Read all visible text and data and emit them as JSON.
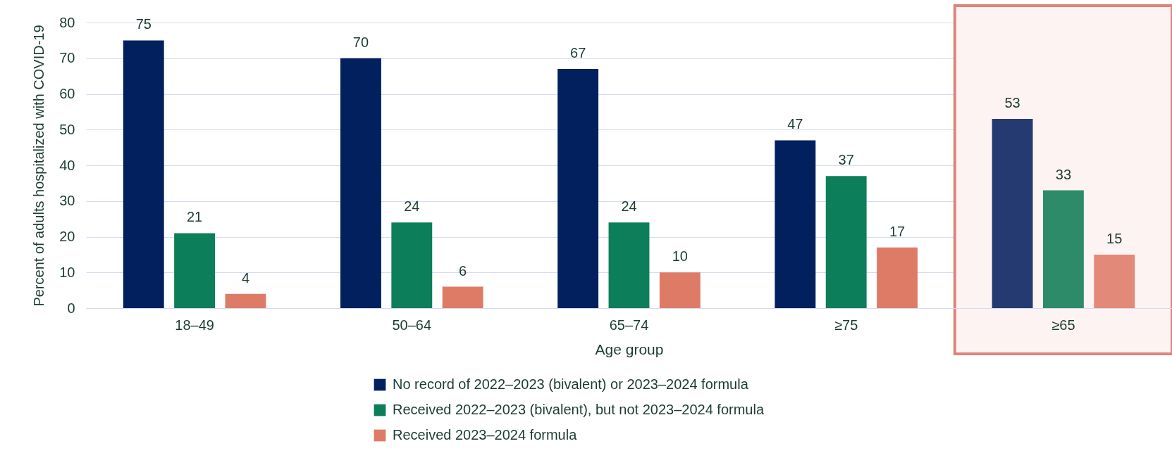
{
  "chart_data": {
    "type": "bar",
    "xlabel": "Age group",
    "ylabel": "Percent of adults hospitalized with COVID-19",
    "categories": [
      "18–49",
      "50–64",
      "65–74",
      "≥75",
      "≥65"
    ],
    "series": [
      {
        "name": "No record of 2022–2023 (bivalent) or 2023–2024 formula",
        "color": "#03205e",
        "colors": [
          "#03205e",
          "#03205e",
          "#03205e",
          "#03205e",
          "#263a72"
        ],
        "values": [
          75,
          70,
          67,
          47,
          53
        ]
      },
      {
        "name": "Received 2022–2023 (bivalent), but not 2023–2024 formula",
        "color": "#0c7e59",
        "colors": [
          "#0c7e59",
          "#0c7e59",
          "#0c7e59",
          "#0c7e59",
          "#2e8b6a"
        ],
        "values": [
          21,
          24,
          24,
          37,
          33
        ]
      },
      {
        "name": "Received 2023–2024 formula",
        "color": "#de7b67",
        "colors": [
          "#de7b67",
          "#de7b67",
          "#de7b67",
          "#de7b67",
          "#e2897a"
        ],
        "values": [
          4,
          6,
          10,
          17,
          15
        ]
      }
    ],
    "bands": [
      {
        "axis": "x",
        "from": "≥65",
        "to": "≥65",
        "color": "#fdf3f2"
      }
    ],
    "ylim": [
      0,
      80
    ],
    "yticks": [
      0,
      10,
      20,
      30,
      40,
      50,
      60,
      70,
      80
    ],
    "grid": "y",
    "legend": "bottom",
    "data_labels": true
  }
}
